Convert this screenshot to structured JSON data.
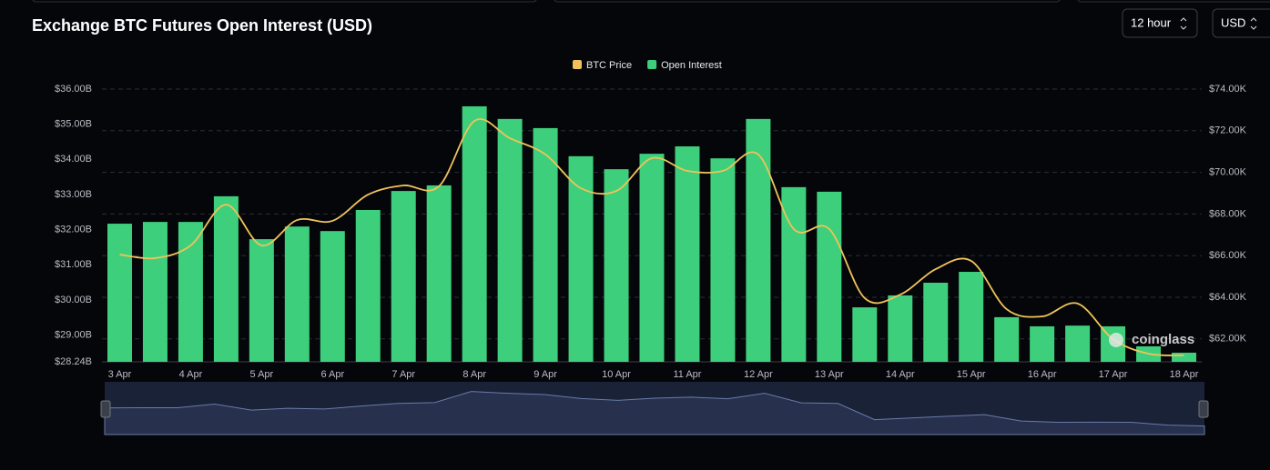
{
  "chart_data": {
    "type": "bar",
    "title": "Exchange BTC Futures Open Interest (USD)",
    "categories": [
      "3 Apr",
      null,
      "4 Apr",
      null,
      "5 Apr",
      null,
      "6 Apr",
      null,
      "7 Apr",
      null,
      "8 Apr",
      null,
      "9 Apr",
      null,
      "10 Apr",
      null,
      "11 Apr",
      null,
      "12 Apr",
      null,
      "13 Apr",
      null,
      "14 Apr",
      null,
      "15 Apr",
      null,
      "16 Apr",
      null,
      "17 Apr",
      null,
      "18 Apr"
    ],
    "series": [
      {
        "name": "BTC Price",
        "type": "line",
        "axis": "y2",
        "color": "#f0c35a",
        "values": [
          66.05,
          65.88,
          66.49,
          68.45,
          66.49,
          67.71,
          67.67,
          68.93,
          69.37,
          69.33,
          72.47,
          71.64,
          70.86,
          69.24,
          69.11,
          70.68,
          70.07,
          70.07,
          70.86,
          67.28,
          67.28,
          63.96,
          64.13,
          65.35,
          65.75,
          63.43,
          63.08,
          63.7,
          61.99,
          61.29,
          61.21
        ]
      },
      {
        "name": "Open Interest",
        "type": "bar",
        "color": "#3ecf7c",
        "values": [
          32.17,
          32.22,
          32.22,
          32.95,
          31.73,
          32.09,
          31.96,
          32.56,
          33.1,
          33.26,
          35.51,
          35.15,
          34.89,
          34.09,
          33.72,
          34.16,
          34.37,
          34.03,
          35.15,
          33.21,
          33.08,
          29.79,
          30.13,
          30.49,
          30.8,
          29.51,
          29.25,
          29.27,
          29.25,
          28.68,
          28.5
        ]
      }
    ],
    "ylim": [
      28.24,
      36.0
    ],
    "yticks": [
      {
        "value": 28.24,
        "label": "$28.24B"
      },
      {
        "value": 29,
        "label": "$29.00B"
      },
      {
        "value": 30,
        "label": "$30.00B"
      },
      {
        "value": 31,
        "label": "$31.00B"
      },
      {
        "value": 32,
        "label": "$32.00B"
      },
      {
        "value": 33,
        "label": "$33.00B"
      },
      {
        "value": 34,
        "label": "$34.00B"
      },
      {
        "value": 35,
        "label": "$35.00B"
      },
      {
        "value": 36,
        "label": "$36.00B"
      }
    ],
    "y2lim": [
      60.9,
      74.0
    ],
    "y2ticks": [
      {
        "value": 62,
        "label": "$62.00K"
      },
      {
        "value": 64,
        "label": "$64.00K"
      },
      {
        "value": 66,
        "label": "$66.00K"
      },
      {
        "value": 68,
        "label": "$68.00K"
      },
      {
        "value": 70,
        "label": "$70.00K"
      },
      {
        "value": 72,
        "label": "$72.00K"
      },
      {
        "value": 74,
        "label": "$74.00K"
      }
    ],
    "grid": true,
    "legend": "top"
  },
  "controls": {
    "interval": "12 hour",
    "currency": "USD"
  },
  "watermark": "coinglass"
}
